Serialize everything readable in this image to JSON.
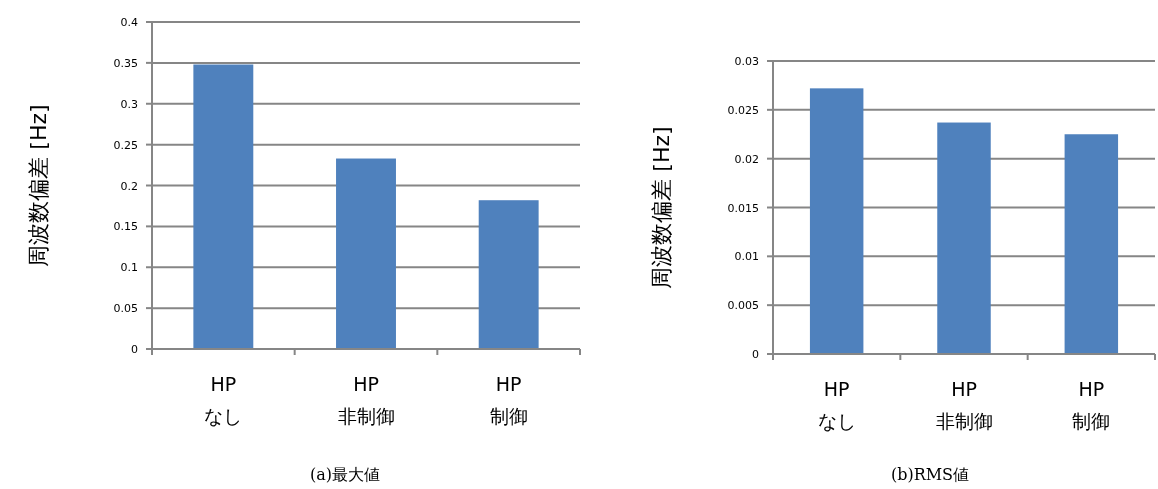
{
  "chart_data": [
    {
      "type": "bar",
      "title": "(a)最大値",
      "ylabel": "周波数偏差 [Hz]",
      "categories": [
        "HP\nなし",
        "HP\n非制御",
        "HP\n制御"
      ],
      "values": [
        0.348,
        0.233,
        0.182
      ],
      "color": "#4f81bd",
      "ylim": [
        0,
        0.4
      ],
      "yticks": [
        0,
        0.05,
        0.1,
        0.15,
        0.2,
        0.25,
        0.3,
        0.35,
        0.4
      ],
      "grid": "y"
    },
    {
      "type": "bar",
      "title": "(b)RMS値",
      "ylabel": "周波数偏差 [Hz]",
      "categories": [
        "HP\nなし",
        "HP\n非制御",
        "HP\n制御"
      ],
      "values": [
        0.0272,
        0.0237,
        0.0225
      ],
      "color": "#4f81bd",
      "ylim": [
        0,
        0.03
      ],
      "yticks": [
        0,
        0.005,
        0.01,
        0.015,
        0.02,
        0.025,
        0.03
      ],
      "grid": "y"
    }
  ]
}
